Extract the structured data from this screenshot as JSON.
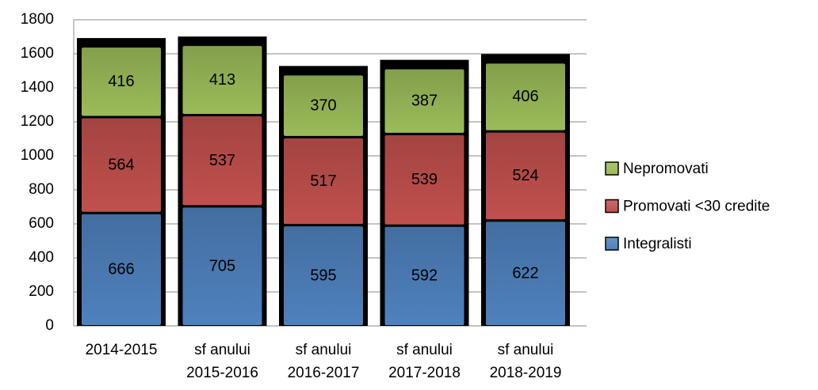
{
  "chart_data": {
    "type": "bar",
    "stacked": true,
    "categories": [
      "2014-2015",
      "sf anului\n2015-2016",
      "sf anului\n2016-2017",
      "sf anului\n2017-2018",
      "sf anului\n2018-2019"
    ],
    "series": [
      {
        "name": "Integralisti",
        "color": "#4f81bd",
        "values": [
          666,
          705,
          595,
          592,
          622
        ]
      },
      {
        "name": "Promovati <30 credite",
        "color": "#c0504d",
        "values": [
          564,
          537,
          517,
          539,
          524
        ]
      },
      {
        "name": "Nepromovati",
        "color": "#9bbb59",
        "values": [
          416,
          413,
          370,
          387,
          406
        ]
      }
    ],
    "ylim": [
      0,
      1800
    ],
    "yticks": [
      0,
      200,
      400,
      600,
      800,
      1000,
      1200,
      1400,
      1600,
      1800
    ],
    "grid": true,
    "legend": "right"
  }
}
